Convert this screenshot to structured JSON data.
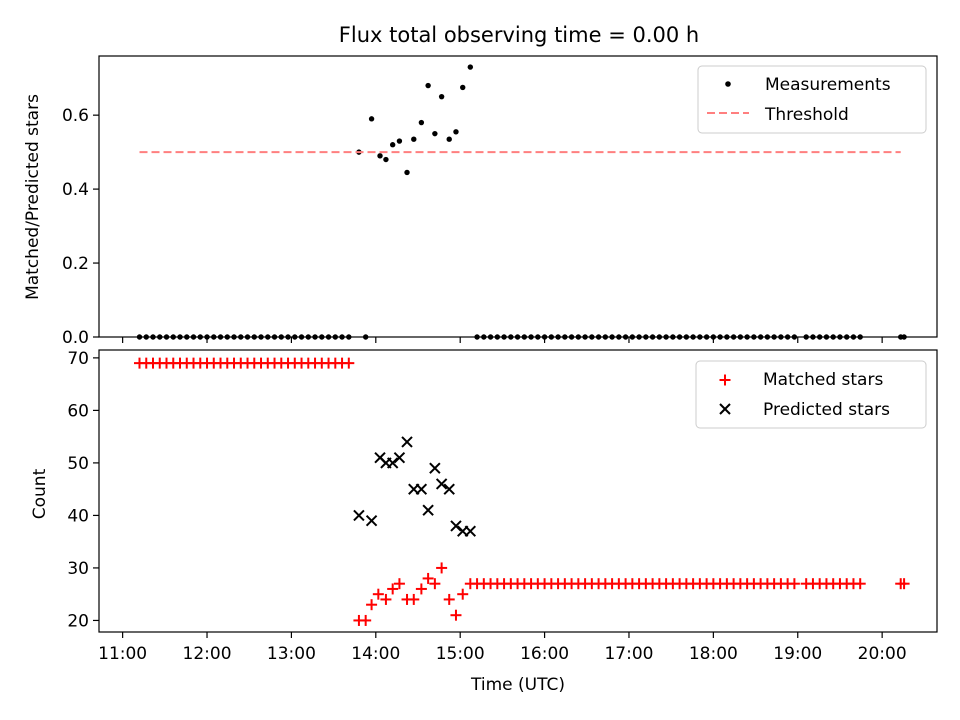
{
  "chart_data": {
    "title": "Flux total observing time = 0.00 h",
    "xlabel": "Time (UTC)",
    "x_tick_labels": [
      "11:00",
      "12:00",
      "13:00",
      "14:00",
      "15:00",
      "16:00",
      "17:00",
      "18:00",
      "19:00",
      "20:00"
    ],
    "x_tick_hours": [
      11,
      12,
      13,
      14,
      15,
      16,
      17,
      18,
      19,
      20
    ],
    "xlim_hours": [
      10.72,
      20.65
    ],
    "panels": [
      {
        "type": "scatter",
        "ylabel": "Matched/Predicted stars",
        "ylim": [
          0,
          0.76
        ],
        "y_ticks": [
          0.0,
          0.2,
          0.4,
          0.6
        ],
        "y_tick_labels": [
          "0.0",
          "0.2",
          "0.4",
          "0.6"
        ],
        "legend_position": "top-right",
        "series": [
          {
            "name": "Measurements",
            "marker": "dot",
            "color": "#000000",
            "x_hours": [
              13.8,
              13.95,
              14.05,
              14.12,
              14.2,
              14.28,
              14.37,
              14.45,
              14.54,
              14.62,
              14.7,
              14.78,
              14.87,
              14.95,
              15.03,
              15.12
            ],
            "values": [
              0.5,
              0.59,
              0.49,
              0.48,
              0.52,
              0.53,
              0.445,
              0.535,
              0.58,
              0.68,
              0.55,
              0.65,
              0.535,
              0.555,
              0.675,
              0.73
            ],
            "zero_x_hours": [
              11.2,
              11.28,
              11.36,
              11.44,
              11.52,
              11.6,
              11.68,
              11.76,
              11.84,
              11.92,
              12.0,
              12.08,
              12.16,
              12.24,
              12.32,
              12.4,
              12.48,
              12.56,
              12.64,
              12.72,
              12.8,
              12.88,
              12.96,
              13.04,
              13.12,
              13.2,
              13.28,
              13.36,
              13.44,
              13.52,
              13.6,
              13.68,
              13.88,
              15.2,
              15.28,
              15.36,
              15.44,
              15.52,
              15.6,
              15.68,
              15.76,
              15.84,
              15.92,
              16.0,
              16.08,
              16.16,
              16.24,
              16.32,
              16.4,
              16.48,
              16.56,
              16.64,
              16.72,
              16.8,
              16.88,
              16.96,
              17.04,
              17.12,
              17.2,
              17.28,
              17.36,
              17.44,
              17.52,
              17.6,
              17.68,
              17.76,
              17.84,
              17.92,
              18.0,
              18.08,
              18.16,
              18.24,
              18.32,
              18.4,
              18.48,
              18.56,
              18.64,
              18.72,
              18.8,
              18.88,
              18.96,
              19.1,
              19.18,
              19.26,
              19.34,
              19.42,
              19.5,
              19.58,
              19.66,
              19.74,
              20.22,
              20.26
            ]
          },
          {
            "name": "Threshold",
            "line": "dashed",
            "color": "#ff7f7f",
            "x_hours": [
              11.2,
              20.22
            ],
            "values": [
              0.5,
              0.5
            ]
          }
        ]
      },
      {
        "type": "scatter",
        "ylabel": "Count",
        "ylim": [
          17.8,
          71.5
        ],
        "y_ticks": [
          20,
          30,
          40,
          50,
          60,
          70
        ],
        "y_tick_labels": [
          "20",
          "30",
          "40",
          "50",
          "60",
          "70"
        ],
        "legend_position": "top-right",
        "series": [
          {
            "name": "Matched stars",
            "marker": "plus",
            "color": "#ff0000",
            "x_hours": [
              11.2,
              11.28,
              11.36,
              11.44,
              11.52,
              11.6,
              11.68,
              11.76,
              11.84,
              11.92,
              12.0,
              12.08,
              12.16,
              12.24,
              12.32,
              12.4,
              12.48,
              12.56,
              12.64,
              12.72,
              12.8,
              12.88,
              12.96,
              13.04,
              13.12,
              13.2,
              13.28,
              13.36,
              13.44,
              13.52,
              13.6,
              13.68,
              13.8,
              13.88,
              13.95,
              14.03,
              14.12,
              14.2,
              14.28,
              14.37,
              14.45,
              14.54,
              14.62,
              14.7,
              14.78,
              14.87,
              14.95,
              15.03,
              15.12,
              15.2,
              15.28,
              15.36,
              15.44,
              15.52,
              15.6,
              15.68,
              15.76,
              15.84,
              15.92,
              16.0,
              16.08,
              16.16,
              16.24,
              16.32,
              16.4,
              16.48,
              16.56,
              16.64,
              16.72,
              16.8,
              16.88,
              16.96,
              17.04,
              17.12,
              17.2,
              17.28,
              17.36,
              17.44,
              17.52,
              17.6,
              17.68,
              17.76,
              17.84,
              17.92,
              18.0,
              18.08,
              18.16,
              18.24,
              18.32,
              18.4,
              18.48,
              18.56,
              18.64,
              18.72,
              18.8,
              18.88,
              18.96,
              19.1,
              19.18,
              19.26,
              19.34,
              19.42,
              19.5,
              19.58,
              19.66,
              19.74,
              20.22,
              20.26
            ],
            "values": [
              69,
              69,
              69,
              69,
              69,
              69,
              69,
              69,
              69,
              69,
              69,
              69,
              69,
              69,
              69,
              69,
              69,
              69,
              69,
              69,
              69,
              69,
              69,
              69,
              69,
              69,
              69,
              69,
              69,
              69,
              69,
              69,
              20,
              20,
              23,
              25,
              24,
              26,
              27,
              24,
              24,
              26,
              28,
              27,
              30,
              24,
              21,
              25,
              27,
              27,
              27,
              27,
              27,
              27,
              27,
              27,
              27,
              27,
              27,
              27,
              27,
              27,
              27,
              27,
              27,
              27,
              27,
              27,
              27,
              27,
              27,
              27,
              27,
              27,
              27,
              27,
              27,
              27,
              27,
              27,
              27,
              27,
              27,
              27,
              27,
              27,
              27,
              27,
              27,
              27,
              27,
              27,
              27,
              27,
              27,
              27,
              27,
              27,
              27,
              27,
              27,
              27,
              27,
              27,
              27,
              27,
              27,
              27
            ]
          },
          {
            "name": "Predicted stars",
            "marker": "x",
            "color": "#000000",
            "x_hours": [
              13.8,
              13.95,
              14.05,
              14.12,
              14.2,
              14.28,
              14.37,
              14.45,
              14.54,
              14.62,
              14.7,
              14.78,
              14.87,
              14.95,
              15.03,
              15.12
            ],
            "values": [
              40,
              39,
              51,
              50,
              50,
              51,
              54,
              45,
              45,
              41,
              49,
              46,
              45,
              38,
              37,
              37
            ]
          }
        ]
      }
    ]
  }
}
